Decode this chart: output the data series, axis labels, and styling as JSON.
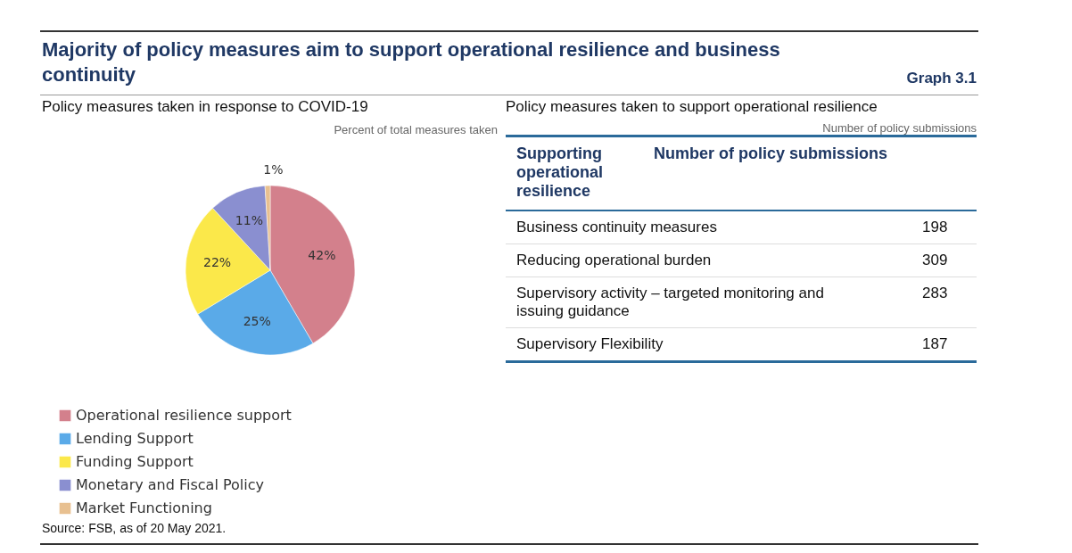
{
  "chart_data": [
    {
      "type": "pie",
      "title": "Majority of policy measures aim to support operational resilience and business continuity",
      "subtitle": "Policy measures taken in response to COVID-19",
      "categories": [
        "Operational resilience support",
        "Lending Support",
        "Funding Support",
        "Monetary and Fiscal Policy",
        "Market Functioning"
      ],
      "values": [
        42,
        25,
        22,
        11,
        1
      ],
      "colors": [
        "#d3808c",
        "#5aaae8",
        "#fbe84a",
        "#8a8fd0",
        "#e8c090"
      ],
      "value_labels": [
        "42%",
        "25%",
        "22%",
        "11%",
        "1%"
      ],
      "legend": "bottom left",
      "annotations": [
        "Percent of total measures taken",
        "Graph 3.1",
        "Source: FSB, as of 20 May 2021."
      ]
    },
    {
      "type": "other",
      "title": "Policy measures taken to support operational resilience",
      "subtitle": "Number of policy submissions",
      "xlabel": "Supporting operational resilience",
      "ylabel": "Number of policy submissions",
      "categories": [
        "Business continuity measures",
        "Reducing operational burden",
        "Supervisory activity – targeted monitoring and issuing guidance",
        "Supervisory Flexibility"
      ],
      "values": [
        198,
        309,
        283,
        187
      ],
      "data_labels": true
    }
  ]
}
